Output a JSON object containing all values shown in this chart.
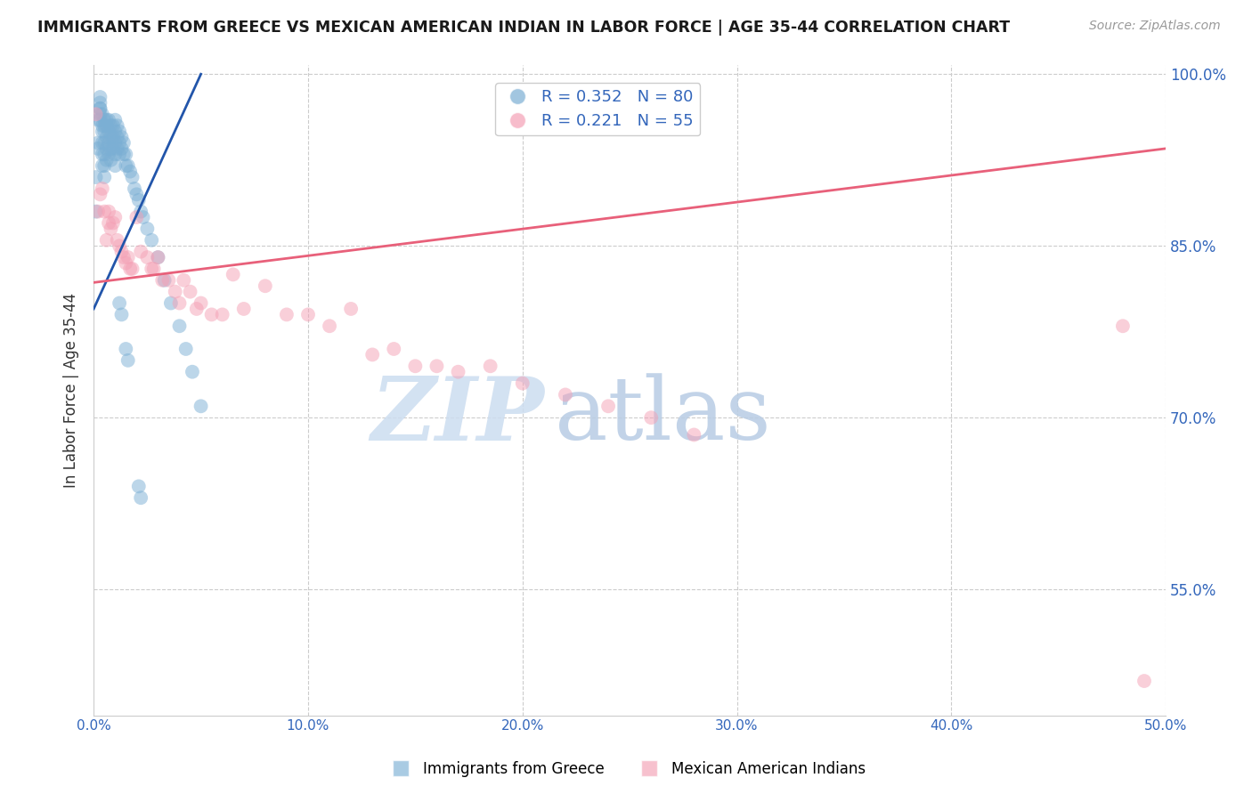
{
  "title": "IMMIGRANTS FROM GREECE VS MEXICAN AMERICAN INDIAN IN LABOR FORCE | AGE 35-44 CORRELATION CHART",
  "source": "Source: ZipAtlas.com",
  "ylabel": "In Labor Force | Age 35-44",
  "legend_blue_label": "Immigrants from Greece",
  "legend_pink_label": "Mexican American Indians",
  "R_blue": 0.352,
  "N_blue": 80,
  "R_pink": 0.221,
  "N_pink": 55,
  "x_min": 0.0,
  "x_max": 0.5,
  "y_min": 0.44,
  "y_max": 1.008,
  "y_ticks": [
    0.55,
    0.7,
    0.85,
    1.0
  ],
  "y_tick_labels": [
    "55.0%",
    "70.0%",
    "85.0%",
    "100.0%"
  ],
  "x_ticks": [
    0.0,
    0.1,
    0.2,
    0.3,
    0.4,
    0.5
  ],
  "x_tick_labels": [
    "0.0%",
    "10.0%",
    "20.0%",
    "30.0%",
    "40.0%",
    "50.0%"
  ],
  "blue_color": "#7bafd4",
  "pink_color": "#f4a0b5",
  "blue_line_color": "#2255AA",
  "pink_line_color": "#e8607a",
  "watermark_zip": "ZIP",
  "watermark_atlas": "atlas",
  "blue_line_x0": 0.0,
  "blue_line_y0": 0.795,
  "blue_line_x1": 0.05,
  "blue_line_y1": 1.0,
  "pink_line_x0": 0.0,
  "pink_line_y0": 0.818,
  "pink_line_x1": 0.5,
  "pink_line_y1": 0.935,
  "blue_x": [
    0.001,
    0.001,
    0.002,
    0.002,
    0.002,
    0.003,
    0.003,
    0.003,
    0.003,
    0.003,
    0.003,
    0.004,
    0.004,
    0.004,
    0.004,
    0.004,
    0.004,
    0.005,
    0.005,
    0.005,
    0.005,
    0.005,
    0.005,
    0.005,
    0.006,
    0.006,
    0.006,
    0.006,
    0.006,
    0.007,
    0.007,
    0.007,
    0.007,
    0.008,
    0.008,
    0.008,
    0.008,
    0.009,
    0.009,
    0.009,
    0.01,
    0.01,
    0.01,
    0.01,
    0.01,
    0.011,
    0.011,
    0.011,
    0.012,
    0.012,
    0.012,
    0.013,
    0.013,
    0.014,
    0.014,
    0.015,
    0.015,
    0.016,
    0.017,
    0.018,
    0.019,
    0.02,
    0.021,
    0.022,
    0.023,
    0.025,
    0.027,
    0.03,
    0.033,
    0.036,
    0.04,
    0.043,
    0.046,
    0.05,
    0.021,
    0.022,
    0.015,
    0.016,
    0.012,
    0.013
  ],
  "blue_y": [
    0.88,
    0.91,
    0.935,
    0.94,
    0.96,
    0.96,
    0.97,
    0.975,
    0.98,
    0.97,
    0.965,
    0.965,
    0.955,
    0.95,
    0.94,
    0.93,
    0.92,
    0.96,
    0.955,
    0.95,
    0.94,
    0.93,
    0.92,
    0.91,
    0.96,
    0.955,
    0.945,
    0.935,
    0.925,
    0.96,
    0.95,
    0.94,
    0.93,
    0.955,
    0.945,
    0.935,
    0.925,
    0.955,
    0.945,
    0.935,
    0.96,
    0.95,
    0.94,
    0.93,
    0.92,
    0.955,
    0.945,
    0.935,
    0.95,
    0.94,
    0.93,
    0.945,
    0.935,
    0.94,
    0.93,
    0.93,
    0.92,
    0.92,
    0.915,
    0.91,
    0.9,
    0.895,
    0.89,
    0.88,
    0.875,
    0.865,
    0.855,
    0.84,
    0.82,
    0.8,
    0.78,
    0.76,
    0.74,
    0.71,
    0.64,
    0.63,
    0.76,
    0.75,
    0.8,
    0.79
  ],
  "pink_x": [
    0.001,
    0.002,
    0.003,
    0.004,
    0.005,
    0.006,
    0.007,
    0.007,
    0.008,
    0.009,
    0.01,
    0.011,
    0.012,
    0.013,
    0.014,
    0.015,
    0.016,
    0.017,
    0.018,
    0.02,
    0.022,
    0.025,
    0.027,
    0.028,
    0.03,
    0.032,
    0.035,
    0.038,
    0.04,
    0.042,
    0.045,
    0.048,
    0.05,
    0.055,
    0.06,
    0.065,
    0.07,
    0.08,
    0.09,
    0.1,
    0.11,
    0.12,
    0.13,
    0.14,
    0.15,
    0.16,
    0.17,
    0.185,
    0.2,
    0.22,
    0.24,
    0.26,
    0.28,
    0.48,
    0.49
  ],
  "pink_y": [
    0.965,
    0.88,
    0.895,
    0.9,
    0.88,
    0.855,
    0.88,
    0.87,
    0.865,
    0.87,
    0.875,
    0.855,
    0.85,
    0.845,
    0.84,
    0.835,
    0.84,
    0.83,
    0.83,
    0.875,
    0.845,
    0.84,
    0.83,
    0.83,
    0.84,
    0.82,
    0.82,
    0.81,
    0.8,
    0.82,
    0.81,
    0.795,
    0.8,
    0.79,
    0.79,
    0.825,
    0.795,
    0.815,
    0.79,
    0.79,
    0.78,
    0.795,
    0.755,
    0.76,
    0.745,
    0.745,
    0.74,
    0.745,
    0.73,
    0.72,
    0.71,
    0.7,
    0.685,
    0.78,
    0.47
  ]
}
